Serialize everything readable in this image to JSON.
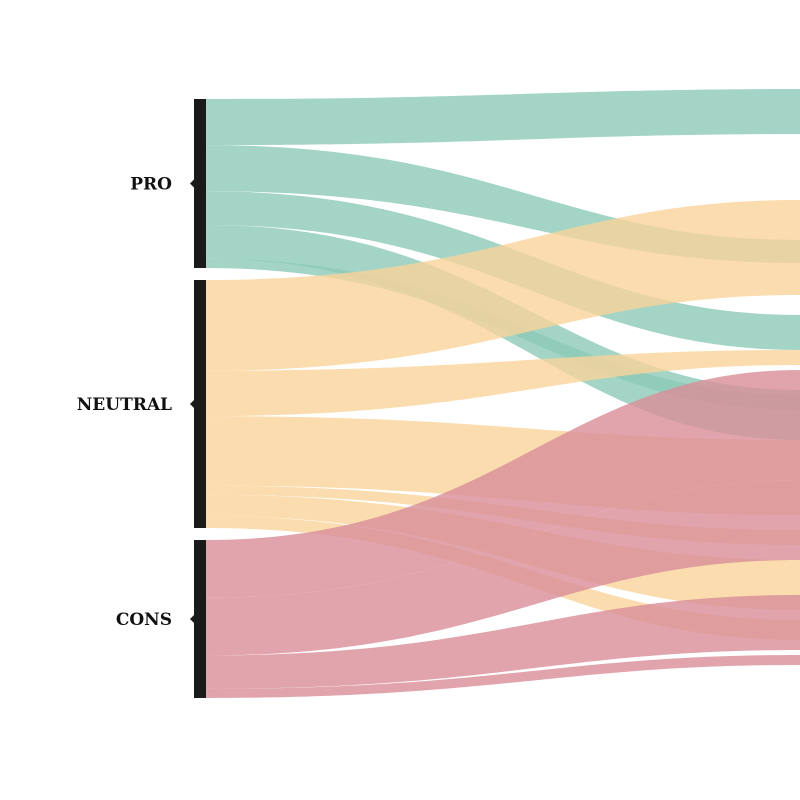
{
  "chart_data": {
    "type": "sankey",
    "title": "",
    "nodes": [
      {
        "id": "pro",
        "label": "PRO",
        "value": 55
      },
      {
        "id": "neutral",
        "label": "NEUTRAL",
        "value": 82
      },
      {
        "id": "cons",
        "label": "CONS",
        "value": 52
      }
    ],
    "flows": [
      {
        "source": "pro",
        "band": 0,
        "value": 15,
        "color_key": "pro"
      },
      {
        "source": "pro",
        "band": 1,
        "value": 15,
        "color_key": "pro"
      },
      {
        "source": "pro",
        "band": 2,
        "value": 11,
        "color_key": "pro"
      },
      {
        "source": "pro",
        "band": 3,
        "value": 11,
        "color_key": "pro"
      },
      {
        "source": "pro",
        "band": 4,
        "value": 3,
        "color_key": "pro"
      },
      {
        "source": "neutral",
        "band": 0,
        "value": 30,
        "color_key": "neutral"
      },
      {
        "source": "neutral",
        "band": 1,
        "value": 15,
        "color_key": "neutral"
      },
      {
        "source": "neutral",
        "band": 2,
        "value": 23,
        "color_key": "neutral"
      },
      {
        "source": "neutral",
        "band": 3,
        "value": 3,
        "color_key": "neutral"
      },
      {
        "source": "neutral",
        "band": 4,
        "value": 7,
        "color_key": "neutral"
      },
      {
        "source": "neutral",
        "band": 5,
        "value": 4,
        "color_key": "neutral"
      },
      {
        "source": "cons",
        "band": 0,
        "value": 19,
        "color_key": "cons"
      },
      {
        "source": "cons",
        "band": 1,
        "value": 19,
        "color_key": "cons"
      },
      {
        "source": "cons",
        "band": 2,
        "value": 11,
        "color_key": "cons"
      },
      {
        "source": "cons",
        "band": 3,
        "value": 3,
        "color_key": "cons"
      }
    ],
    "colors": {
      "pro": "#8cc9b8",
      "neutral": "#f9d39a",
      "cons": "#d98d98",
      "node_bar": "#1a1a1a"
    },
    "legend": "none",
    "grid": false
  }
}
